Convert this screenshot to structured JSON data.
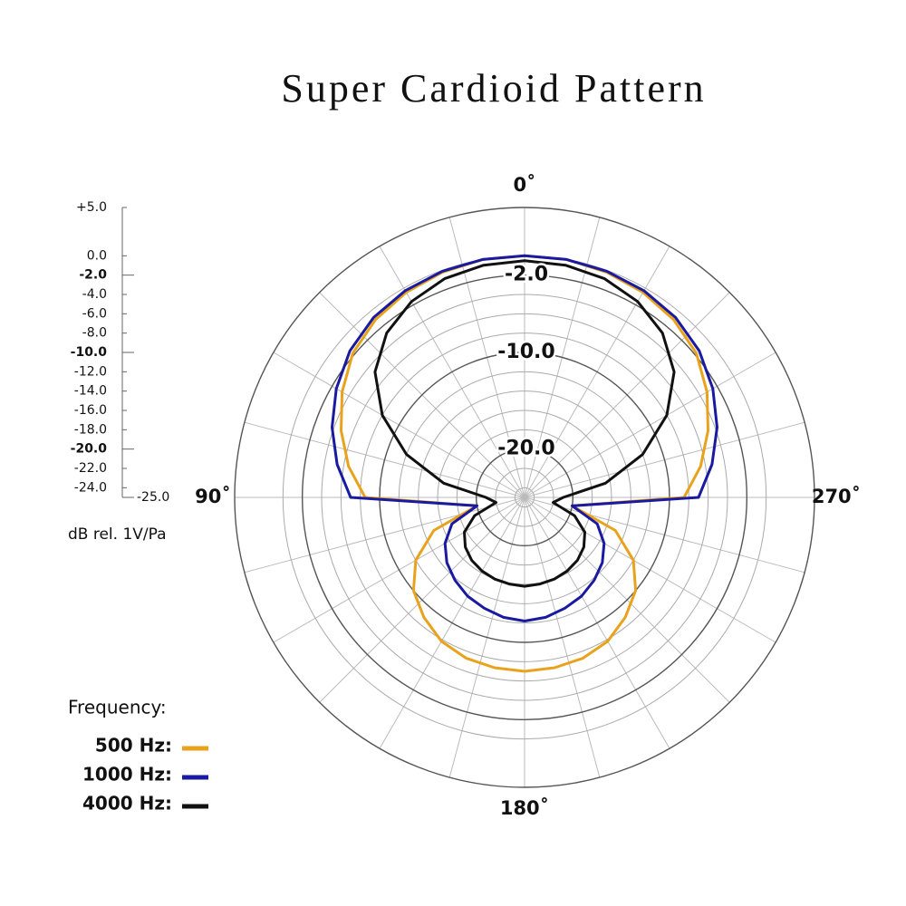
{
  "chart_data": {
    "type": "polar",
    "title": "Super Cardioid Pattern",
    "y_label": "dB rel. 1V/Pa",
    "legend_title": "Frequency:",
    "x": [
      0,
      10,
      20,
      30,
      40,
      50,
      60,
      70,
      80,
      90,
      100,
      110,
      120,
      130,
      140,
      150,
      160,
      170,
      180,
      190,
      200,
      210,
      220,
      230,
      240,
      250,
      260,
      270,
      280,
      290,
      300,
      310,
      320,
      330,
      340,
      350
    ],
    "xticks": [
      {
        "value": 0,
        "label": "0˚"
      },
      {
        "value": 90,
        "label": "90˚"
      },
      {
        "value": 180,
        "label": "180˚"
      },
      {
        "value": 270,
        "label": "270˚"
      }
    ],
    "ylim": [
      -25,
      5
    ],
    "yticks": [
      {
        "value": 5,
        "label": "+5.0"
      },
      {
        "value": 0,
        "label": "0.0"
      },
      {
        "value": -2,
        "label": "-2.0"
      },
      {
        "value": -4,
        "label": "-4.0"
      },
      {
        "value": -6,
        "label": "-6.0"
      },
      {
        "value": -8,
        "label": "-8.0"
      },
      {
        "value": -10,
        "label": "-10.0"
      },
      {
        "value": -12,
        "label": "-12.0"
      },
      {
        "value": -14,
        "label": "-14.0"
      },
      {
        "value": -16,
        "label": "-16.0"
      },
      {
        "value": -18,
        "label": "-18.0"
      },
      {
        "value": -20,
        "label": "-20.0"
      },
      {
        "value": -22,
        "label": "-22.0"
      },
      {
        "value": -24,
        "label": "-24.0"
      },
      {
        "value": -25,
        "label": "-25.0"
      }
    ],
    "ring_labels": [
      {
        "value": -2,
        "label": "-2.0"
      },
      {
        "value": -10,
        "label": "-10.0"
      },
      {
        "value": -20,
        "label": "-20.0"
      }
    ],
    "series": [
      {
        "name": "500 Hz:",
        "color": "#e8a21c",
        "values": [
          0,
          0,
          -0.2,
          -0.5,
          -1.0,
          -1.8,
          -3.2,
          -4.8,
          -6.5,
          -8.5,
          -20,
          -15,
          -12,
          -10,
          -8.8,
          -7.8,
          -7.3,
          -7.1,
          -7.0,
          -7.1,
          -7.3,
          -7.8,
          -8.8,
          -10,
          -12,
          -15,
          -20,
          -8.5,
          -6.5,
          -4.8,
          -3.2,
          -1.8,
          -1.0,
          -0.5,
          -0.2,
          0
        ]
      },
      {
        "name": "1000 Hz:",
        "color": "#1a1aa0",
        "values": [
          0,
          0,
          -0.1,
          -0.3,
          -0.7,
          -1.4,
          -2.5,
          -3.8,
          -5.3,
          -7,
          -20,
          -17,
          -15.5,
          -14.5,
          -13.8,
          -13.2,
          -12.8,
          -12.4,
          -12.2,
          -12.4,
          -12.8,
          -13.2,
          -13.8,
          -14.5,
          -15.5,
          -17,
          -20,
          -7,
          -5.3,
          -3.8,
          -2.5,
          -1.4,
          -0.7,
          -0.3,
          -0.1,
          0
        ]
      },
      {
        "name": "4000 Hz:",
        "color": "#111111",
        "values": [
          -0.5,
          -0.6,
          -0.9,
          -1.6,
          -2.8,
          -4.8,
          -8,
          -12,
          -16.5,
          -21,
          -22,
          -19.5,
          -17.8,
          -17,
          -16.5,
          -16.2,
          -16,
          -15.9,
          -15.8,
          -15.9,
          -16,
          -16.2,
          -16.5,
          -17,
          -17.8,
          -19.5,
          -22,
          -21,
          -16.5,
          -12,
          -8,
          -4.8,
          -2.8,
          -1.6,
          -0.9,
          -0.6
        ]
      }
    ]
  }
}
